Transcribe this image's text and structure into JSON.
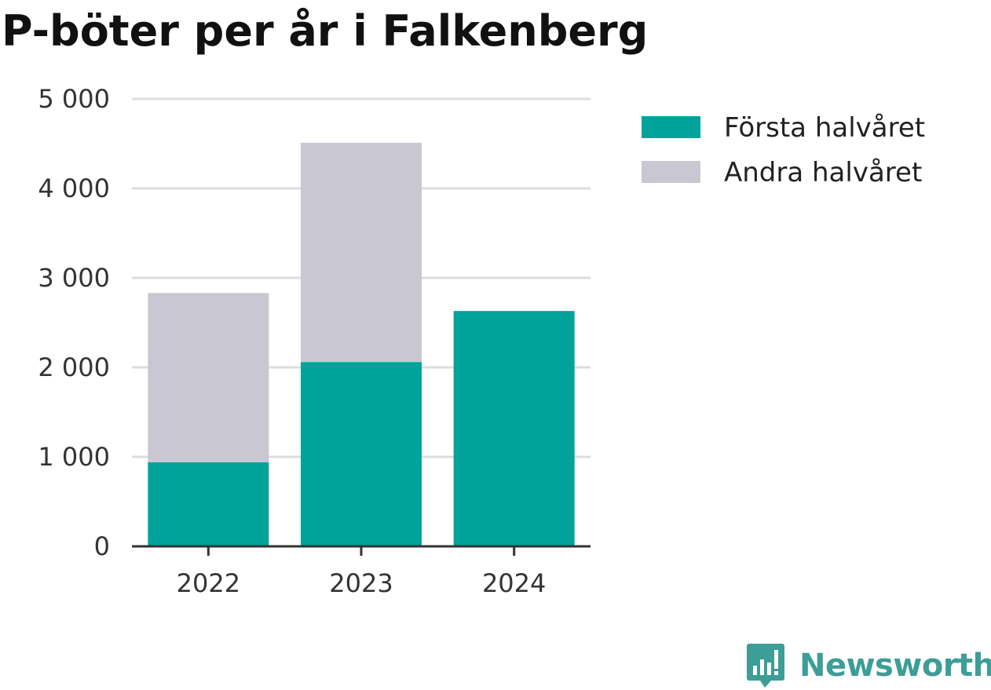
{
  "chart_data": {
    "type": "bar",
    "stacked": true,
    "title": "P-böter per år i Falkenberg",
    "categories": [
      "2022",
      "2023",
      "2024"
    ],
    "series": [
      {
        "name": "Första halvåret",
        "color": "#00a39a",
        "values": [
          940,
          2060,
          2630
        ]
      },
      {
        "name": "Andra halvåret",
        "color": "#c8c7d2",
        "values": [
          1890,
          2450,
          0
        ]
      }
    ],
    "ylim": [
      0,
      5000
    ],
    "yticks": [
      0,
      1000,
      2000,
      3000,
      4000,
      5000
    ],
    "ytick_labels": [
      "0",
      "1 000",
      "2 000",
      "3 000",
      "4 000",
      "5 000"
    ],
    "grid": true,
    "legend_position": "top-right"
  },
  "brand": {
    "name": "Newsworthy",
    "icon": "newsworthy-logo-icon",
    "color": "#3d9d97"
  }
}
